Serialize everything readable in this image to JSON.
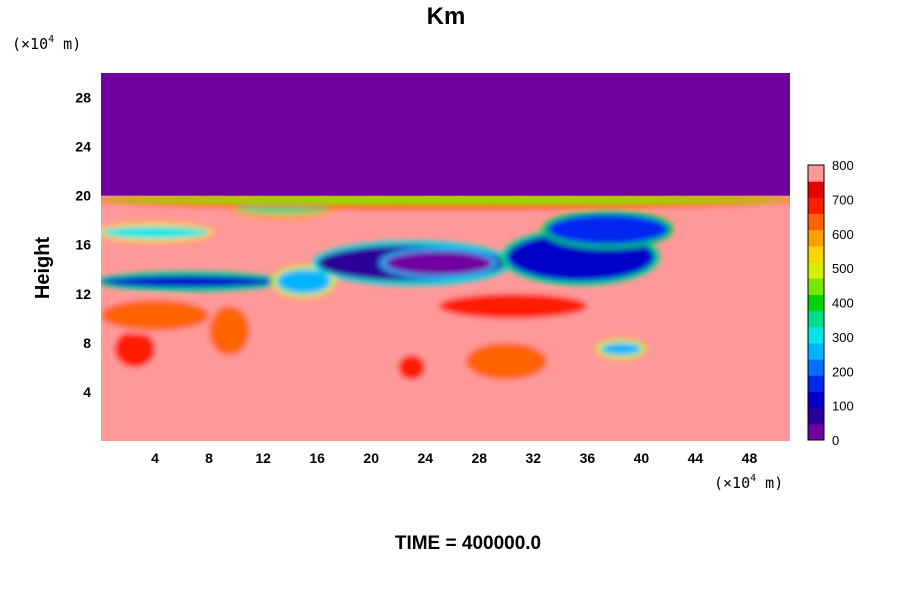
{
  "chart_data": {
    "type": "heatmap",
    "title": "Km",
    "ylabel": "Height",
    "xlabel": "",
    "y_unit": {
      "prefix": "(×10",
      "exp": "4",
      "suffix": " m)"
    },
    "x_unit": {
      "prefix": "(×10",
      "exp": "4",
      "suffix": " m)"
    },
    "xlim": [
      0,
      51
    ],
    "ylim": [
      0,
      30
    ],
    "x_ticks": [
      4,
      8,
      12,
      16,
      20,
      24,
      28,
      32,
      36,
      40,
      44,
      48
    ],
    "x_tick_labels": [
      "4",
      "8",
      "12",
      "16",
      "20",
      "24",
      "28",
      "32",
      "36",
      "40",
      "44",
      "48"
    ],
    "y_ticks": [
      4,
      8,
      12,
      16,
      20,
      24,
      28
    ],
    "y_tick_labels": [
      "4",
      "8",
      "12",
      "16",
      "20",
      "24",
      "28"
    ],
    "colorbar": {
      "min": 0,
      "max": 800,
      "step": 50,
      "tick_values": [
        0,
        100,
        200,
        300,
        400,
        500,
        600,
        700,
        800
      ],
      "tick_labels": [
        "0",
        "100",
        "200",
        "300",
        "400",
        "500",
        "600",
        "700",
        "800"
      ],
      "colors": [
        "#7000a0",
        "#2a0098",
        "#0000c8",
        "#0028f0",
        "#0070ff",
        "#00b4ff",
        "#00e6e6",
        "#00dc8c",
        "#00d200",
        "#78e600",
        "#d2f000",
        "#ffd200",
        "#ffa000",
        "#ff6400",
        "#ff1e00",
        "#e60000",
        "#ff9999"
      ]
    },
    "fields": {
      "top_region": {
        "y_from": 20,
        "y_to": 30,
        "value": 0
      },
      "background_value": 800,
      "low_value_bands": [
        {
          "x": [
            0,
            13
          ],
          "y": [
            12.5,
            13.5
          ],
          "value": 120
        },
        {
          "x": [
            13,
            17
          ],
          "y": [
            12,
            14
          ],
          "value": 250
        },
        {
          "x": [
            16,
            30
          ],
          "y": [
            13,
            16
          ],
          "value": 60
        },
        {
          "x": [
            21,
            29
          ],
          "y": [
            13.5,
            15.5
          ],
          "value": 20
        },
        {
          "x": [
            30,
            41
          ],
          "y": [
            13,
            17
          ],
          "value": 100
        },
        {
          "x": [
            0,
            8
          ],
          "y": [
            16.5,
            17.5
          ],
          "value": 300
        },
        {
          "x": [
            33,
            42
          ],
          "y": [
            16,
            18.5
          ],
          "value": 180
        },
        {
          "x": [
            10,
            17
          ],
          "y": [
            18.5,
            19.5
          ],
          "value": 350
        },
        {
          "x": [
            37,
            40
          ],
          "y": [
            7,
            8
          ],
          "value": 250
        },
        {
          "x": [
            0,
            51
          ],
          "y": [
            19.3,
            20
          ],
          "value": 450
        }
      ],
      "mid_value_patches": [
        {
          "x": [
            8,
            11
          ],
          "y": [
            7,
            11
          ],
          "value": 650
        },
        {
          "x": [
            1,
            4
          ],
          "y": [
            6,
            9
          ],
          "value": 700
        },
        {
          "x": [
            27,
            33
          ],
          "y": [
            5,
            8
          ],
          "value": 650
        },
        {
          "x": [
            22,
            24
          ],
          "y": [
            5,
            7
          ],
          "value": 700
        },
        {
          "x": [
            25,
            36
          ],
          "y": [
            10,
            12
          ],
          "value": 700
        },
        {
          "x": [
            0,
            8
          ],
          "y": [
            9,
            11.5
          ],
          "value": 650
        }
      ]
    }
  },
  "footer": {
    "time_label": "TIME = 400000.0"
  }
}
